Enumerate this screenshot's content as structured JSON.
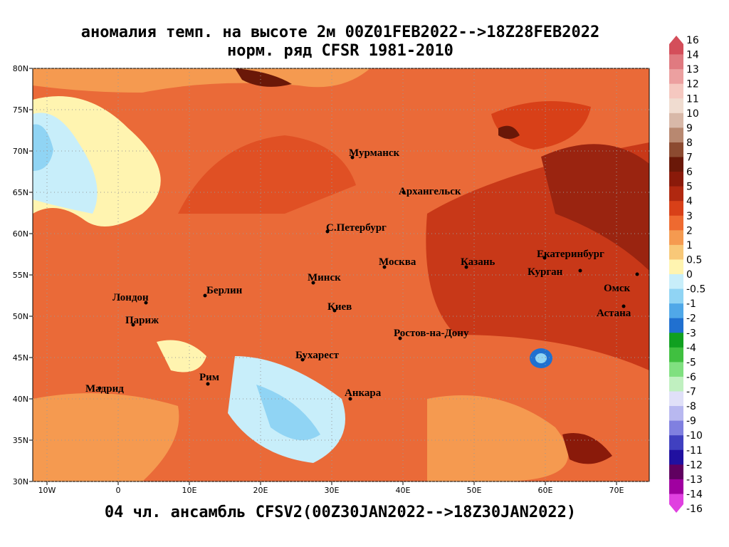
{
  "map": {
    "title": "аномалия темп. на высоте 2м 00Z01FEB2022-->18Z28FEB2022",
    "subtitle": "норм. ряд CFSR 1981-2010",
    "footer": "04 чл. ансамбль CFSV2(00Z30JAN2022-->18Z30JAN2022)",
    "xticks": [
      {
        "value": -10,
        "label": "10W"
      },
      0,
      {
        "value": 10,
        "label": "10E"
      },
      {
        "value": 20,
        "label": "20E"
      },
      {
        "value": 30,
        "label": "30E"
      },
      {
        "value": 40,
        "label": "40E"
      },
      {
        "value": 50,
        "label": "50E"
      },
      {
        "value": 60,
        "label": "60E"
      },
      {
        "value": 70,
        "label": "70E"
      }
    ],
    "yticks": [
      {
        "value": 30,
        "label": "30N"
      },
      {
        "value": 35,
        "label": "35N"
      },
      {
        "value": 40,
        "label": "40N"
      },
      {
        "value": 45,
        "label": "45N"
      },
      {
        "value": 50,
        "label": "50N"
      },
      {
        "value": 55,
        "label": "55N"
      },
      {
        "value": 60,
        "label": "60N"
      },
      {
        "value": 65,
        "label": "65N"
      },
      {
        "value": 70,
        "label": "70N"
      },
      {
        "value": 75,
        "label": "75N"
      },
      {
        "value": 80,
        "label": "80N"
      }
    ],
    "xlim": [
      -12,
      74.6
    ],
    "ylim": [
      30,
      80
    ],
    "cities": [
      "Мурманск",
      "Архангельск",
      "С.Петербург",
      "Москва",
      "Казань",
      "Екатеринбург",
      "Курган",
      "Омск",
      "Астана",
      "Минск",
      "Берлин",
      "Лондон",
      "Париж",
      "Киев",
      "Ростов-на-Дону",
      "Бухарест",
      "Рим",
      "Мадрид",
      "Анкара"
    ],
    "colorbar": {
      "ticks": [
        16,
        14,
        13,
        12,
        11,
        10,
        9,
        8,
        7,
        6,
        5,
        4,
        3,
        2,
        1,
        0.5,
        0,
        -0.5,
        -1,
        -2,
        -3,
        -4,
        -5,
        -6,
        -7,
        -8,
        -9,
        -10,
        -11,
        -12,
        -13,
        -14,
        -16
      ],
      "colors": [
        "#d44e5a",
        "#e07a80",
        "#eca0a0",
        "#f5c8c0",
        "#f0dcd0",
        "#d8b8a8",
        "#b88870",
        "#8c4a30",
        "#6a1808",
        "#8a1a0a",
        "#b02810",
        "#d84018",
        "#ee6a30",
        "#f59a50",
        "#f8c878",
        "#fff4b0",
        "#c8eefa",
        "#90d4f4",
        "#50a8e8",
        "#2070d0",
        "#10a020",
        "#40c040",
        "#80e080",
        "#c0f0c0",
        "#e0e0f8",
        "#b8b8f0",
        "#8080e0",
        "#4040c0",
        "#2010a0",
        "#600060",
        "#a000a0",
        "#e040e0"
      ]
    }
  }
}
